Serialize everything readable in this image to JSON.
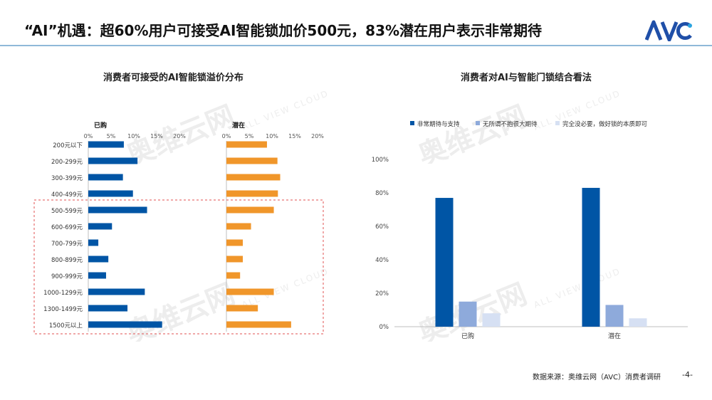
{
  "slide": {
    "title": "“AI”机遇：超60%用户可接受AI智能锁加价500元，83%潜在用户表示非常期待",
    "logo_text": "AVC",
    "source": "数据来源：奥维云网（AVC）消费者调研",
    "page": "-4-",
    "watermark_cn": "奥维云网",
    "watermark_en": "ALL VIEW CLOUD"
  },
  "colors": {
    "blue": "#0055a5",
    "orange": "#f0962a",
    "mid_blue": "#8eaadb",
    "light_blue": "#d6e0f3",
    "dashed": "#e05050"
  },
  "chart_data": [
    {
      "type": "bar",
      "orientation": "horizontal",
      "title": "消费者可接受的AI智能锁溢价分布",
      "categories": [
        "200元以下",
        "200-299元",
        "300-399元",
        "400-499元",
        "500-599元",
        "600-699元",
        "700-799元",
        "800-899元",
        "900-999元",
        "1000-1299元",
        "1300-1499元",
        "1500元以上"
      ],
      "x_ticks": [
        "0%",
        "5%",
        "10%",
        "15%",
        "20%"
      ],
      "xlim": [
        0,
        20
      ],
      "highlight_from_category": "500-599元",
      "panels": [
        {
          "name": "已购",
          "color": "#0055a5",
          "values": [
            7.8,
            10.8,
            7.6,
            9.8,
            12.9,
            5.2,
            2.2,
            4.4,
            3.9,
            12.4,
            8.6,
            16.2
          ]
        },
        {
          "name": "潜在",
          "color": "#f0962a",
          "values": [
            8.9,
            11.2,
            11.8,
            11.3,
            10.4,
            5.4,
            3.6,
            3.6,
            3.0,
            10.4,
            6.9,
            14.2
          ]
        }
      ]
    },
    {
      "type": "bar",
      "title": "消费者对AI与智能门锁结合看法",
      "categories": [
        "已购",
        "潜在"
      ],
      "y_ticks": [
        "0%",
        "20%",
        "40%",
        "60%",
        "80%",
        "100%"
      ],
      "ylim": [
        0,
        100
      ],
      "legend_position": "top",
      "series": [
        {
          "name": "非常期待与支持",
          "color": "#0055a5",
          "values": [
            77,
            83
          ]
        },
        {
          "name": "无所谓不抱很大期待",
          "color": "#8eaadb",
          "values": [
            15,
            13
          ]
        },
        {
          "name": "完全没必要，做好锁的本质即可",
          "color": "#d6e0f3",
          "values": [
            8,
            5
          ]
        }
      ]
    }
  ]
}
